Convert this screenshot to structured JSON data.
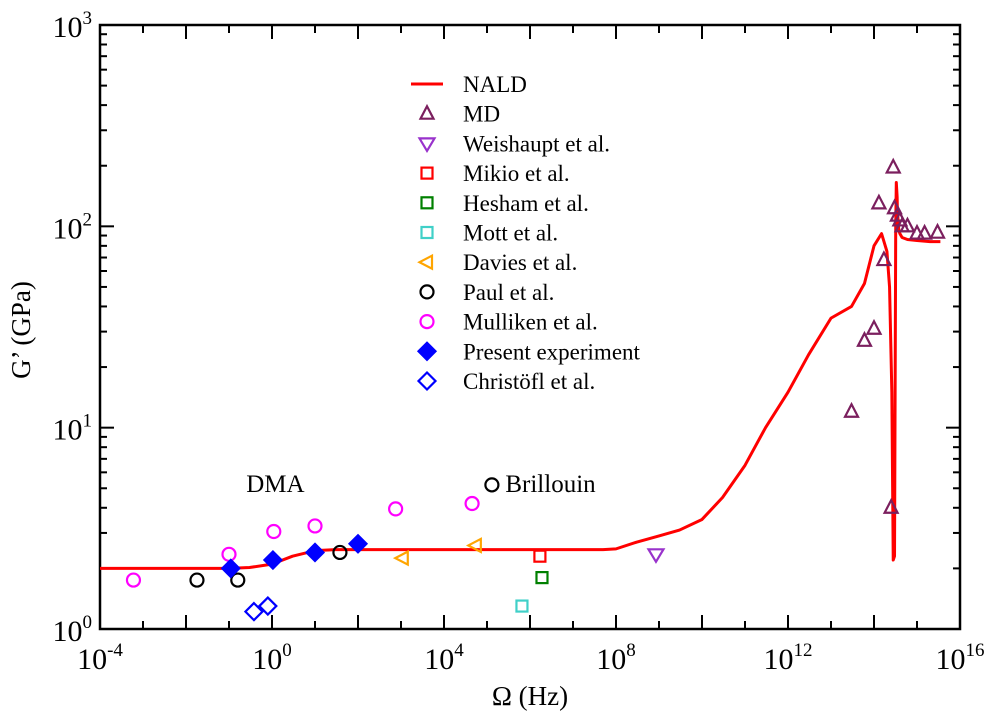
{
  "chart_data": {
    "type": "scatter",
    "xscale": "log",
    "yscale": "log",
    "xlabel": "Ω (Hz)",
    "ylabel": "G’ (GPa)",
    "xlim": [
      0.0001,
      10000000000000000
    ],
    "ylim": [
      1,
      1000
    ],
    "x_ticks": [
      {
        "base": "10",
        "exp": "-4",
        "value": 0.0001
      },
      {
        "base": "10",
        "exp": "0",
        "value": 1
      },
      {
        "base": "10",
        "exp": "4",
        "value": 10000
      },
      {
        "base": "10",
        "exp": "8",
        "value": 100000000
      },
      {
        "base": "10",
        "exp": "12",
        "value": 1000000000000
      },
      {
        "base": "10",
        "exp": "16",
        "value": 10000000000000000
      }
    ],
    "y_ticks": [
      {
        "base": "10",
        "exp": "0",
        "value": 1
      },
      {
        "base": "10",
        "exp": "1",
        "value": 10
      },
      {
        "base": "10",
        "exp": "2",
        "value": 100
      },
      {
        "base": "10",
        "exp": "3",
        "value": 1000
      }
    ],
    "annotations": [
      {
        "text": "DMA",
        "x": 1.2,
        "y": 4.8,
        "color": "#8a2be2"
      },
      {
        "text": "Brillouin",
        "x": 3000000,
        "y": 4.8,
        "color": "#008000"
      }
    ],
    "series": [
      {
        "name": "NALD",
        "kind": "line",
        "color": "#ff0000",
        "x": [
          0.0001,
          0.001,
          0.01,
          0.1,
          0.3,
          1,
          3,
          10,
          30,
          100,
          1000,
          10000,
          100000,
          1000000,
          10000000,
          50000000,
          100000000,
          300000000,
          1000000000,
          3000000000,
          10000000000,
          30000000000,
          100000000000,
          300000000000,
          1000000000000,
          3000000000000,
          10000000000000,
          30000000000000,
          60000000000000,
          100000000000000,
          150000000000000,
          200000000000000,
          230000000000000,
          260000000000000,
          280000000000000,
          300000000000000,
          320000000000000,
          330000000000000,
          345000000000000,
          350000000000000,
          360000000000000,
          370000000000000,
          380000000000000,
          400000000000000,
          450000000000000,
          600000000000000,
          1000000000000000,
          2000000000000000,
          3500000000000000
        ],
        "y": [
          2.0,
          2.0,
          2.0,
          2.0,
          2.02,
          2.1,
          2.3,
          2.45,
          2.48,
          2.48,
          2.48,
          2.48,
          2.48,
          2.48,
          2.48,
          2.48,
          2.5,
          2.7,
          2.9,
          3.1,
          3.5,
          4.5,
          6.5,
          10.0,
          15.0,
          23.0,
          35.0,
          40.0,
          52.0,
          80.0,
          92.0,
          75.0,
          50.0,
          15.0,
          2.2,
          2.3,
          100.0,
          165.0,
          140.0,
          120.0,
          110.0,
          100.0,
          95.0,
          92.0,
          88.0,
          86.0,
          85.0,
          84.0,
          84.0
        ]
      },
      {
        "name": "MD",
        "kind": "marker",
        "marker": "triangle-up",
        "color": "#7b1f5e",
        "filled": false,
        "x": [
          30000000000000,
          60000000000000,
          100000000000000,
          130000000000000,
          170000000000000,
          250000000000000,
          280000000000000,
          300000000000000,
          350000000000000,
          400000000000000,
          450000000000000,
          600000000000000,
          1000000000000000,
          1500000000000000,
          3000000000000000
        ],
        "y": [
          12.0,
          27.0,
          31.0,
          130.0,
          68.0,
          4.0,
          196.0,
          123.0,
          113.0,
          107.0,
          100.0,
          100.0,
          92.0,
          92.0,
          93.0
        ]
      },
      {
        "name": "Weishaupt et al.",
        "kind": "marker",
        "marker": "triangle-down",
        "color": "#9932cc",
        "filled": false,
        "x": [
          850000000
        ],
        "y": [
          2.35
        ]
      },
      {
        "name": "Mikio et al.",
        "kind": "marker",
        "marker": "square",
        "color": "#ff0000",
        "filled": false,
        "x": [
          1700000
        ],
        "y": [
          2.3
        ]
      },
      {
        "name": "Hesham et al.",
        "kind": "marker",
        "marker": "square",
        "color": "#008000",
        "filled": false,
        "x": [
          1900000
        ],
        "y": [
          1.8
        ]
      },
      {
        "name": "Mott et al.",
        "kind": "marker",
        "marker": "square",
        "color": "#40d0c8",
        "filled": false,
        "x": [
          650000
        ],
        "y": [
          1.3
        ]
      },
      {
        "name": "Davies et al.",
        "kind": "marker",
        "marker": "triangle-left",
        "color": "#ffa500",
        "filled": false,
        "x": [
          1100,
          55000
        ],
        "y": [
          2.25,
          2.6
        ]
      },
      {
        "name": "Paul et al.",
        "kind": "marker",
        "marker": "circle",
        "color": "#000000",
        "filled": false,
        "x": [
          0.018,
          0.16,
          38,
          130000
        ],
        "y": [
          1.75,
          1.75,
          2.4,
          5.2
        ]
      },
      {
        "name": "Mulliken et al.",
        "kind": "marker",
        "marker": "circle",
        "color": "#ff00ff",
        "filled": false,
        "x": [
          0.0006,
          0.1,
          1.1,
          10,
          750,
          45000
        ],
        "y": [
          1.75,
          2.35,
          3.05,
          3.25,
          3.95,
          4.2
        ]
      },
      {
        "name": "Present experiment",
        "kind": "marker",
        "marker": "diamond",
        "color": "#0000ff",
        "filled": true,
        "x": [
          0.11,
          1.05,
          10,
          100
        ],
        "y": [
          2.0,
          2.2,
          2.4,
          2.65
        ]
      },
      {
        "name": "Christöfl et al.",
        "kind": "marker",
        "marker": "diamond",
        "color": "#0000ff",
        "filled": false,
        "x": [
          0.38,
          0.8
        ],
        "y": [
          1.22,
          1.3
        ]
      }
    ]
  }
}
